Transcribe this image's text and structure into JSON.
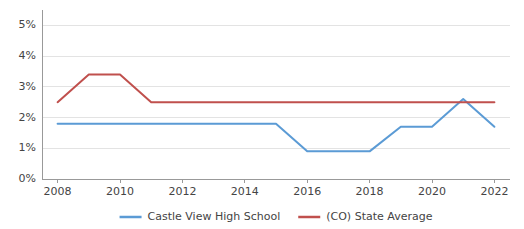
{
  "chart_data": {
    "type": "line",
    "x": [
      2008,
      2009,
      2010,
      2011,
      2012,
      2013,
      2014,
      2015,
      2016,
      2017,
      2018,
      2019,
      2020,
      2021,
      2022
    ],
    "series": [
      {
        "name": "Castle View High School",
        "color": "#5b9bd5",
        "values": [
          0.018,
          0.018,
          0.018,
          0.018,
          0.018,
          0.018,
          0.018,
          0.018,
          0.009,
          0.009,
          0.009,
          0.017,
          0.017,
          0.026,
          0.017
        ]
      },
      {
        "name": "(CO) State Average",
        "color": "#c0504d",
        "values": [
          0.025,
          0.034,
          0.034,
          0.025,
          0.025,
          0.025,
          0.025,
          0.025,
          0.025,
          0.025,
          0.025,
          0.025,
          0.025,
          0.025,
          0.025
        ]
      }
    ],
    "xlim": [
      2007.5,
      2022.5
    ],
    "xticks": [
      2008,
      2010,
      2012,
      2014,
      2016,
      2018,
      2020,
      2022
    ],
    "ylim": [
      0.0,
      0.055
    ],
    "yticks": [
      {
        "value": 0.0,
        "label": "0%"
      },
      {
        "value": 0.01,
        "label": "1%"
      },
      {
        "value": 0.02,
        "label": "2%"
      },
      {
        "value": 0.03,
        "label": "3%"
      },
      {
        "value": 0.04,
        "label": "4%"
      },
      {
        "value": 0.05,
        "label": "5%"
      }
    ],
    "grid": true,
    "legend": "bottom"
  }
}
